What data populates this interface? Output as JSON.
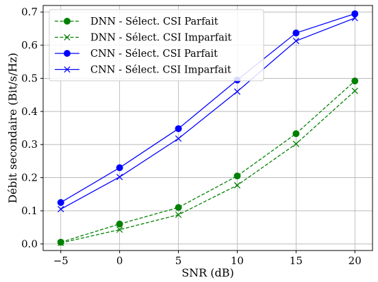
{
  "chart_data": {
    "type": "line",
    "x": [
      -5,
      0,
      5,
      10,
      15,
      20
    ],
    "xlabel": "SNR (dB)",
    "ylabel": "Débit secondaire (Bit/s/Hz)",
    "xlim": [
      -6.5,
      21.5
    ],
    "ylim": [
      -0.02,
      0.72
    ],
    "xticks": [
      -5,
      0,
      5,
      10,
      15,
      20
    ],
    "xtick_labels": [
      "−5",
      "0",
      "5",
      "10",
      "15",
      "20"
    ],
    "yticks": [
      0.0,
      0.1,
      0.2,
      0.3,
      0.4,
      0.5,
      0.6,
      0.7
    ],
    "ytick_labels": [
      "0.0",
      "0.1",
      "0.2",
      "0.3",
      "0.4",
      "0.5",
      "0.6",
      "0.7"
    ],
    "grid": true,
    "legend_position": "top-left",
    "series": [
      {
        "name": "DNN - Sélect. CSI Parfait",
        "values": [
          0.005,
          0.06,
          0.11,
          0.205,
          0.333,
          0.492
        ],
        "color": "#008000",
        "marker": "circle",
        "dashed": true
      },
      {
        "name": "DNN - Sélect. CSI Imparfait",
        "values": [
          0.003,
          0.043,
          0.088,
          0.177,
          0.302,
          0.462
        ],
        "color": "#008000",
        "marker": "x",
        "dashed": true
      },
      {
        "name": "CNN - Sélect. CSI Parfait",
        "values": [
          0.125,
          0.23,
          0.348,
          0.495,
          0.637,
          0.695
        ],
        "color": "#0000ff",
        "marker": "circle",
        "dashed": false
      },
      {
        "name": "CNN - Sélect. CSI Imparfait",
        "values": [
          0.105,
          0.202,
          0.318,
          0.46,
          0.613,
          0.682
        ],
        "color": "#0000ff",
        "marker": "x",
        "dashed": false
      }
    ]
  }
}
